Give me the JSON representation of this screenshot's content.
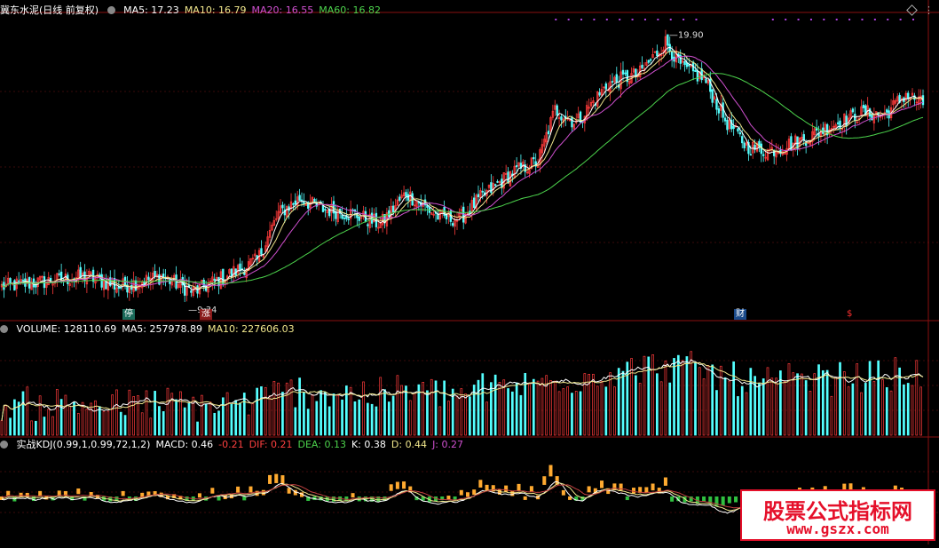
{
  "price_panel": {
    "stock_name": "冀东水泥(日线 前复权)",
    "ma_labels": [
      {
        "text": "MA5: 17.23",
        "color": "#ffffff"
      },
      {
        "text": "MA10: 16.79",
        "color": "#f0e68c"
      },
      {
        "text": "MA20: 16.55",
        "color": "#d050d0"
      },
      {
        "text": "MA60: 16.82",
        "color": "#4cd34c"
      }
    ],
    "high_label": "19.90",
    "low_label": "9.34",
    "markers": [
      {
        "text": "停",
        "bg": "#1a6a5a",
        "fg": "#ffffff"
      },
      {
        "text": "涨",
        "bg": "#8a1a1a",
        "fg": "#ffffff"
      },
      {
        "text": "财",
        "bg": "#1a4a8a",
        "fg": "#ffffff"
      },
      {
        "text": "$",
        "bg": "#000000",
        "fg": "#ff3030"
      }
    ]
  },
  "volume_panel": {
    "labels": [
      {
        "text": "VOLUME: 128110.69",
        "color": "#ffffff"
      },
      {
        "text": "MA5: 257978.89",
        "color": "#ffffff"
      },
      {
        "text": "MA10: 227606.03",
        "color": "#f0e68c"
      }
    ]
  },
  "kdj_panel": {
    "labels": [
      {
        "text": "实战KDJ(0.99,1,0.99,72,1,2)",
        "color": "#ffffff"
      },
      {
        "text": "MACD: 0.46",
        "color": "#ffffff"
      },
      {
        "text": "-0.21",
        "color": "#ff4040"
      },
      {
        "text": "DIF: 0.21",
        "color": "#ff4040"
      },
      {
        "text": "DEA: 0.13",
        "color": "#4cd34c"
      },
      {
        "text": "K: 0.38",
        "color": "#ffffff"
      },
      {
        "text": "D: 0.44",
        "color": "#f0e68c"
      },
      {
        "text": "J: 0.27",
        "color": "#d050d0"
      }
    ]
  },
  "watermark": {
    "cn": "股票公式指标网",
    "url": "www.gszx.com"
  },
  "chart_data": {
    "type": "candlestick",
    "price_anchors": [
      [
        0,
        10.2
      ],
      [
        20,
        10.4
      ],
      [
        40,
        10.6
      ],
      [
        55,
        10.2
      ],
      [
        75,
        10.6
      ],
      [
        90,
        10.0
      ],
      [
        105,
        10.6
      ],
      [
        120,
        11.2
      ],
      [
        130,
        13.0
      ],
      [
        140,
        13.6
      ],
      [
        150,
        13.2
      ],
      [
        165,
        13.0
      ],
      [
        178,
        12.6
      ],
      [
        190,
        13.8
      ],
      [
        205,
        12.9
      ],
      [
        215,
        12.8
      ],
      [
        225,
        13.6
      ],
      [
        240,
        14.6
      ],
      [
        252,
        15.0
      ],
      [
        260,
        17.0
      ],
      [
        270,
        16.5
      ],
      [
        285,
        18.0
      ],
      [
        300,
        18.4
      ],
      [
        312,
        19.6
      ],
      [
        320,
        18.6
      ],
      [
        330,
        18.2
      ],
      [
        340,
        16.6
      ],
      [
        350,
        15.6
      ],
      [
        360,
        15.4
      ],
      [
        375,
        15.8
      ],
      [
        390,
        16.4
      ],
      [
        405,
        16.9
      ],
      [
        415,
        16.8
      ],
      [
        425,
        17.6
      ],
      [
        433,
        17.2
      ]
    ],
    "n_bars": 434,
    "ma_periods": [
      5,
      10,
      20,
      60
    ],
    "ma_colors": [
      "#ffffff",
      "#f0e68c",
      "#d050d0",
      "#4cd34c"
    ],
    "up_color": "#ff3b3b",
    "down_color": "#54ffff",
    "price_ylim": [
      9.0,
      20.6
    ],
    "high": 19.9,
    "low": 9.34
  }
}
